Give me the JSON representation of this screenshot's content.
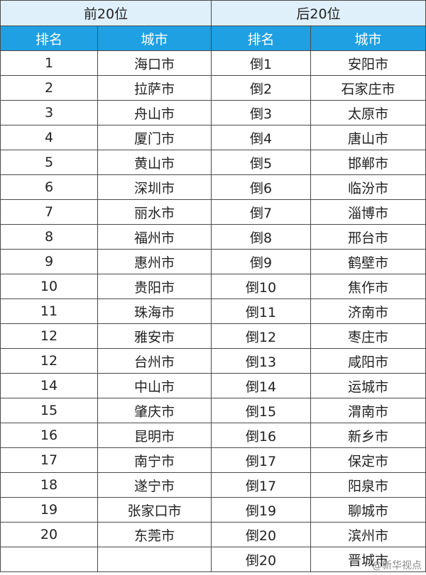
{
  "table": {
    "groups": [
      "前20位",
      "后20位"
    ],
    "columns": [
      "排名",
      "城市",
      "排名",
      "城市"
    ],
    "rows": [
      [
        "1",
        "海口市",
        "倒1",
        "安阳市"
      ],
      [
        "2",
        "拉萨市",
        "倒2",
        "石家庄市"
      ],
      [
        "3",
        "舟山市",
        "倒3",
        "太原市"
      ],
      [
        "4",
        "厦门市",
        "倒4",
        "唐山市"
      ],
      [
        "5",
        "黄山市",
        "倒5",
        "邯郸市"
      ],
      [
        "6",
        "深圳市",
        "倒6",
        "临汾市"
      ],
      [
        "7",
        "丽水市",
        "倒7",
        "淄博市"
      ],
      [
        "8",
        "福州市",
        "倒8",
        "邢台市"
      ],
      [
        "9",
        "惠州市",
        "倒9",
        "鹤壁市"
      ],
      [
        "10",
        "贵阳市",
        "倒10",
        "焦作市"
      ],
      [
        "11",
        "珠海市",
        "倒11",
        "济南市"
      ],
      [
        "12",
        "雅安市",
        "倒12",
        "枣庄市"
      ],
      [
        "12",
        "台州市",
        "倒13",
        "咸阳市"
      ],
      [
        "14",
        "中山市",
        "倒14",
        "运城市"
      ],
      [
        "15",
        "肇庆市",
        "倒15",
        "渭南市"
      ],
      [
        "16",
        "昆明市",
        "倒16",
        "新乡市"
      ],
      [
        "17",
        "南宁市",
        "倒17",
        "保定市"
      ],
      [
        "18",
        "遂宁市",
        "倒17",
        "阳泉市"
      ],
      [
        "19",
        "张家口市",
        "倒19",
        "聊城市"
      ],
      [
        "20",
        "东莞市",
        "倒20",
        "滨州市"
      ],
      [
        null,
        null,
        "倒20",
        "晋城市"
      ]
    ],
    "watermark": "@新华视点"
  }
}
